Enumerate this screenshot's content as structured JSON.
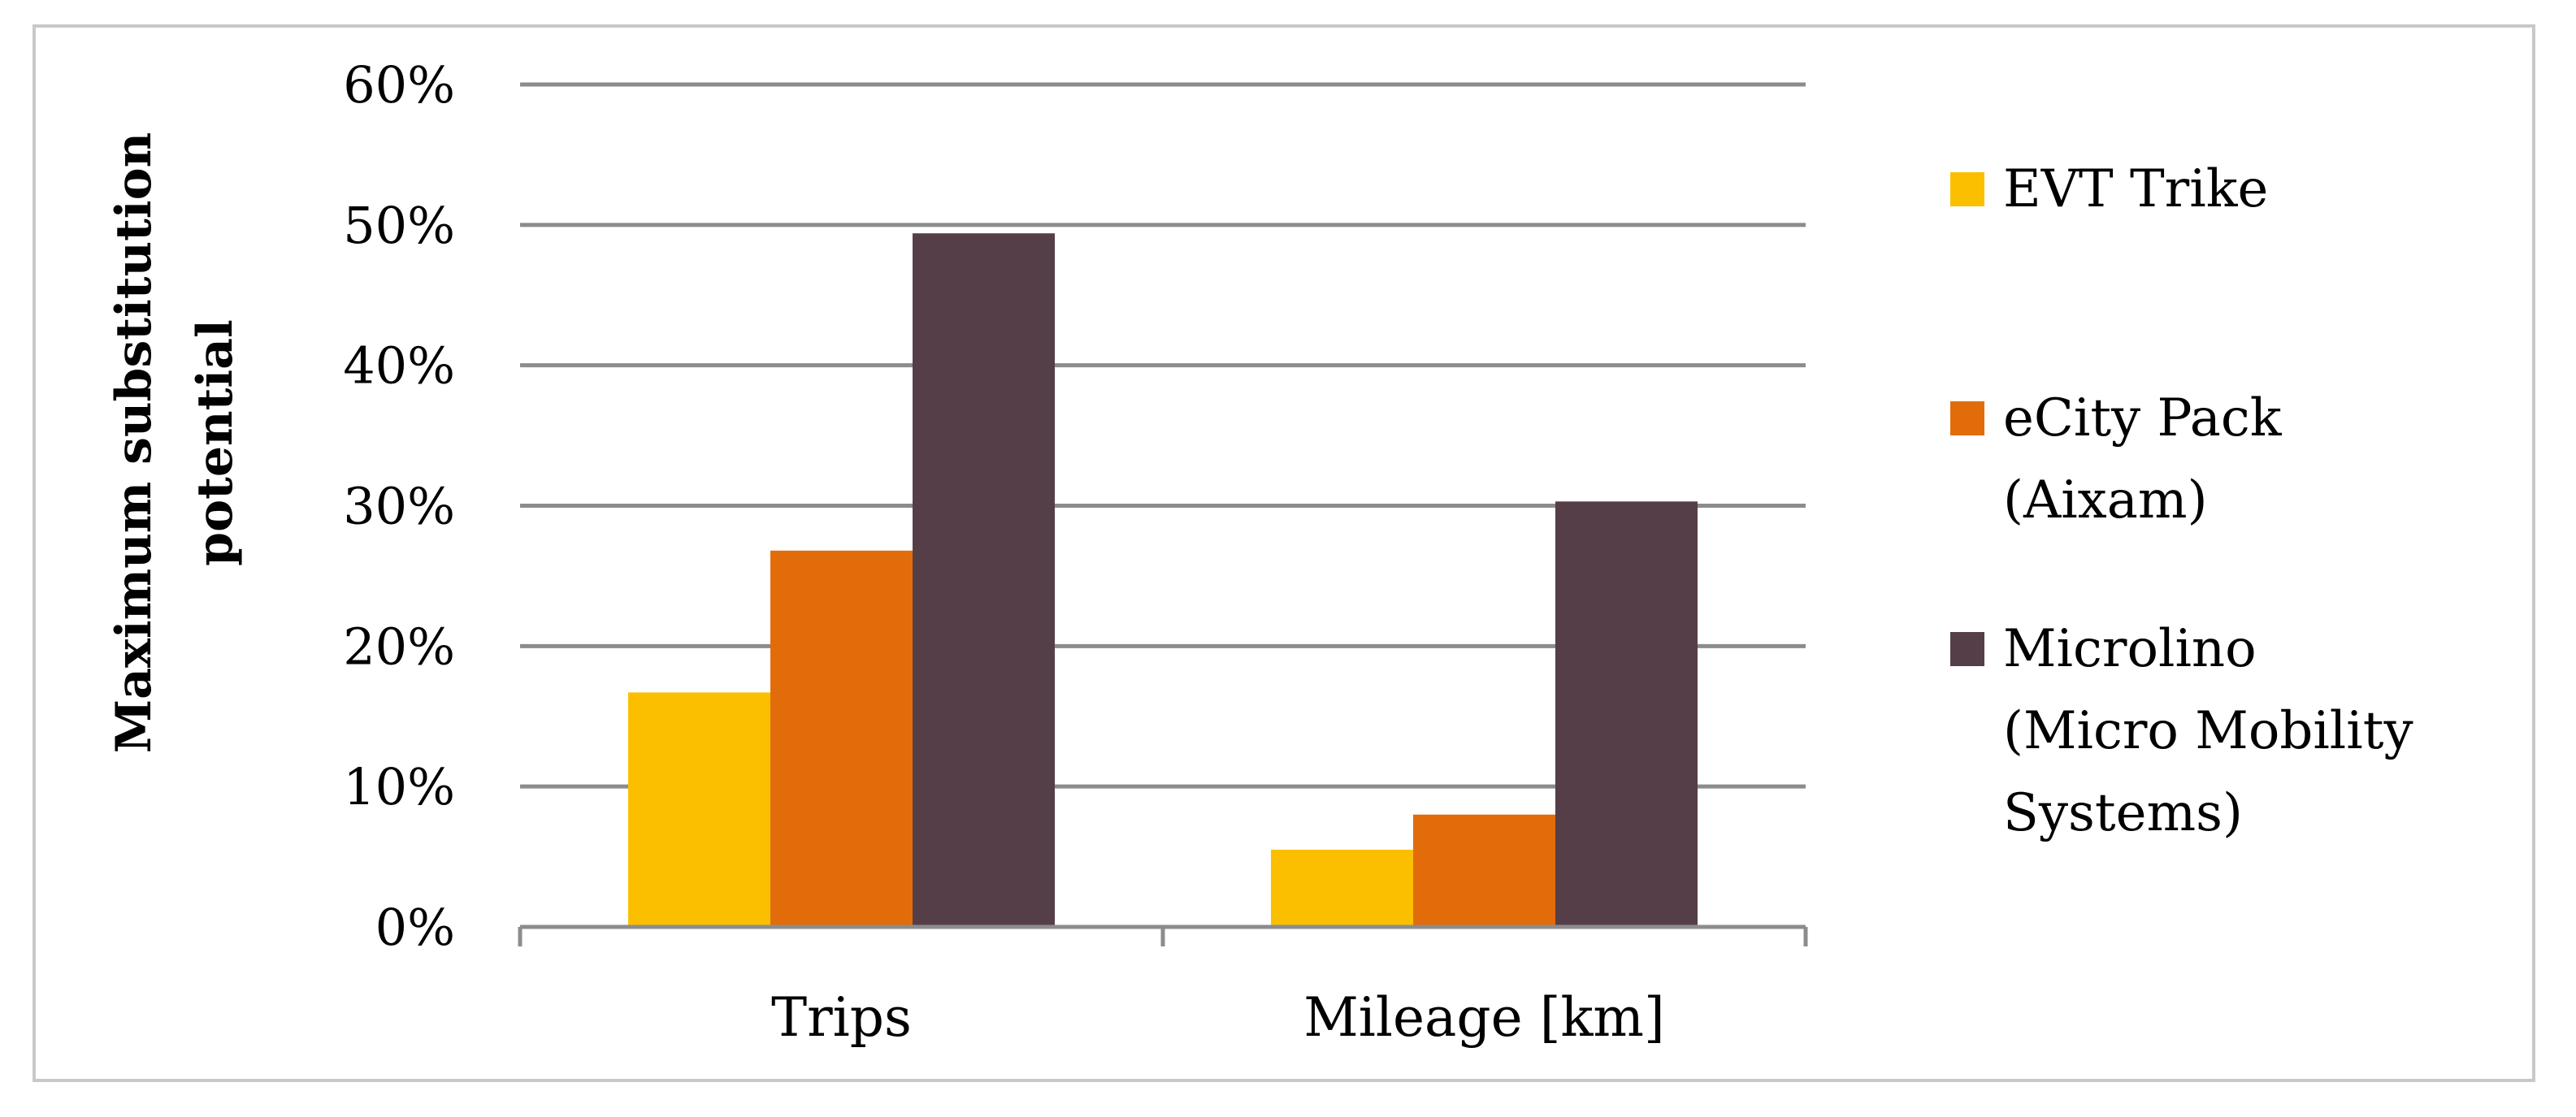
{
  "chart_data": {
    "type": "bar",
    "categories": [
      "Trips",
      "Mileage [km]"
    ],
    "series": [
      {
        "name": "EVT Trike",
        "values": [
          0.167,
          0.055
        ],
        "color": "#fbbf00"
      },
      {
        "name": "eCity Pack (Aixam)",
        "name_lines": [
          "eCity Pack",
          "(Aixam)"
        ],
        "values": [
          0.268,
          0.08
        ],
        "color": "#e36c0a"
      },
      {
        "name": "Microlino (Micro Mobility Systems)",
        "name_lines": [
          "Microlino",
          "(Micro Mobility",
          "Systems)"
        ],
        "values": [
          0.494,
          0.303
        ],
        "color": "#553e48"
      }
    ],
    "ylabel": "Maximum substitution potential",
    "ylabel_lines": [
      "Maximum substitution",
      "potential"
    ],
    "xlabel": "",
    "ylim": [
      0,
      0.6
    ],
    "yticks": [
      {
        "value": 0.0,
        "label": "0%"
      },
      {
        "value": 0.1,
        "label": "10%"
      },
      {
        "value": 0.2,
        "label": "20%"
      },
      {
        "value": 0.3,
        "label": "30%"
      },
      {
        "value": 0.4,
        "label": "40%"
      },
      {
        "value": 0.5,
        "label": "50%"
      },
      {
        "value": 0.6,
        "label": "60%"
      }
    ],
    "grid": true,
    "legend_position": "right",
    "gridline_color": "#8c8c8c",
    "frame_color": "#c8c8c8"
  }
}
